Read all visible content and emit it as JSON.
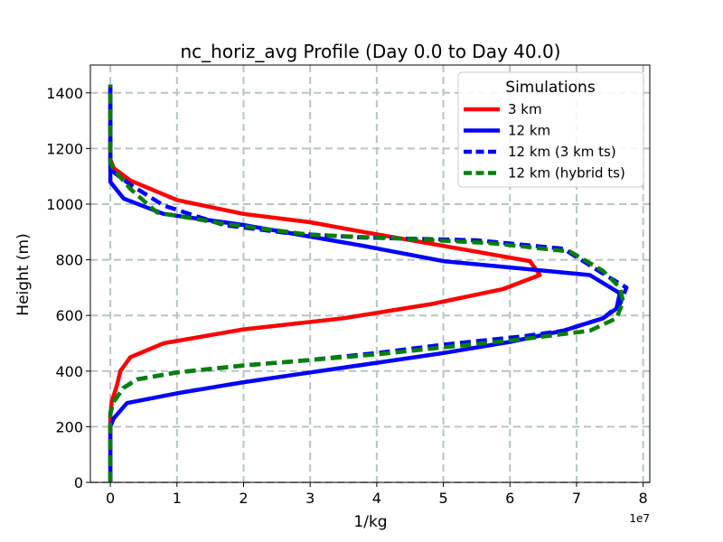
{
  "chart_data": {
    "type": "line",
    "title": "nc_horiz_avg Profile (Day 0.0 to Day 40.0)",
    "xlabel": "1/kg",
    "ylabel": "Height (m)",
    "x_offset_label": "1e7",
    "x_scale": 10000000,
    "xlim": [
      -0.3,
      8.1
    ],
    "ylim": [
      0,
      1500
    ],
    "grid": true,
    "x_ticks": [
      0,
      1,
      2,
      3,
      4,
      5,
      6,
      7,
      8
    ],
    "y_ticks": [
      0,
      200,
      400,
      600,
      800,
      1000,
      1200,
      1400
    ],
    "legend": {
      "title": "Simulations",
      "position": "top-right"
    },
    "series": [
      {
        "name": "3 km",
        "color": "#ff0000",
        "dash": "solid",
        "points": [
          [
            0,
            0
          ],
          [
            0,
            40
          ],
          [
            0,
            100
          ],
          [
            0,
            150
          ],
          [
            0,
            200
          ],
          [
            0,
            240
          ],
          [
            0.02,
            290
          ],
          [
            0.1,
            350
          ],
          [
            0.15,
            400
          ],
          [
            0.3,
            450
          ],
          [
            0.8,
            500
          ],
          [
            2,
            550
          ],
          [
            3.5,
            590
          ],
          [
            4.8,
            640
          ],
          [
            5.9,
            695
          ],
          [
            6.45,
            745
          ],
          [
            6.3,
            795
          ],
          [
            5,
            850
          ],
          [
            3.8,
            900
          ],
          [
            3,
            935
          ],
          [
            2,
            965
          ],
          [
            1,
            1015
          ],
          [
            0.3,
            1085
          ],
          [
            0.05,
            1130
          ],
          [
            0,
            1160
          ],
          [
            0,
            1200
          ],
          [
            0,
            1280
          ],
          [
            0,
            1350
          ],
          [
            0,
            1430
          ]
        ]
      },
      {
        "name": "12 km",
        "color": "#0000ff",
        "dash": "solid",
        "points": [
          [
            0,
            0
          ],
          [
            0,
            40
          ],
          [
            0,
            100
          ],
          [
            0,
            150
          ],
          [
            0,
            200
          ],
          [
            0.05,
            230
          ],
          [
            0.25,
            285
          ],
          [
            1,
            320
          ],
          [
            2,
            360
          ],
          [
            3,
            395
          ],
          [
            4,
            430
          ],
          [
            5,
            465
          ],
          [
            6,
            505
          ],
          [
            6.8,
            545
          ],
          [
            7.4,
            590
          ],
          [
            7.6,
            625
          ],
          [
            7.65,
            680
          ],
          [
            7.2,
            745
          ],
          [
            5,
            795
          ],
          [
            3.8,
            850
          ],
          [
            2,
            925
          ],
          [
            0.8,
            965
          ],
          [
            0.2,
            1020
          ],
          [
            0,
            1080
          ],
          [
            0,
            1130
          ],
          [
            0,
            1200
          ],
          [
            0,
            1300
          ],
          [
            0,
            1430
          ]
        ]
      },
      {
        "name": "12 km (3 km ts)",
        "color": "#0000ff",
        "dash": "dashed",
        "points": [
          [
            0,
            0
          ],
          [
            0,
            40
          ],
          [
            0,
            100
          ],
          [
            0,
            150
          ],
          [
            0,
            200
          ],
          [
            0,
            250
          ],
          [
            0.05,
            290
          ],
          [
            0.2,
            340
          ],
          [
            0.4,
            370
          ],
          [
            1,
            395
          ],
          [
            2,
            420
          ],
          [
            3,
            440
          ],
          [
            4,
            465
          ],
          [
            5,
            495
          ],
          [
            6.2,
            525
          ],
          [
            6.8,
            545
          ],
          [
            7.4,
            590
          ],
          [
            7.65,
            640
          ],
          [
            7.75,
            700
          ],
          [
            7.4,
            750
          ],
          [
            6.8,
            840
          ],
          [
            5.5,
            870
          ],
          [
            3.8,
            880
          ],
          [
            2.7,
            895
          ],
          [
            1.7,
            925
          ],
          [
            0.8,
            995
          ],
          [
            0.3,
            1070
          ],
          [
            0.02,
            1120
          ],
          [
            0,
            1150
          ],
          [
            0,
            1200
          ],
          [
            0,
            1300
          ],
          [
            0,
            1430
          ]
        ]
      },
      {
        "name": "12 km (hybrid ts)",
        "color": "#008000",
        "dash": "dashed",
        "points": [
          [
            0,
            0
          ],
          [
            0,
            40
          ],
          [
            0,
            100
          ],
          [
            0,
            150
          ],
          [
            0,
            200
          ],
          [
            0,
            250
          ],
          [
            0.05,
            290
          ],
          [
            0.2,
            340
          ],
          [
            0.4,
            370
          ],
          [
            1,
            395
          ],
          [
            2,
            420
          ],
          [
            3,
            440
          ],
          [
            4,
            460
          ],
          [
            5,
            485
          ],
          [
            6.2,
            515
          ],
          [
            7.2,
            545
          ],
          [
            7.6,
            590
          ],
          [
            7.7,
            650
          ],
          [
            7.65,
            700
          ],
          [
            7.4,
            760
          ],
          [
            6.9,
            830
          ],
          [
            5.7,
            860
          ],
          [
            4.5,
            875
          ],
          [
            3,
            890
          ],
          [
            1.7,
            930
          ],
          [
            0.7,
            970
          ],
          [
            0.3,
            1055
          ],
          [
            0.05,
            1125
          ],
          [
            0,
            1150
          ],
          [
            0,
            1200
          ],
          [
            0,
            1300
          ],
          [
            0,
            1430
          ]
        ]
      }
    ]
  }
}
